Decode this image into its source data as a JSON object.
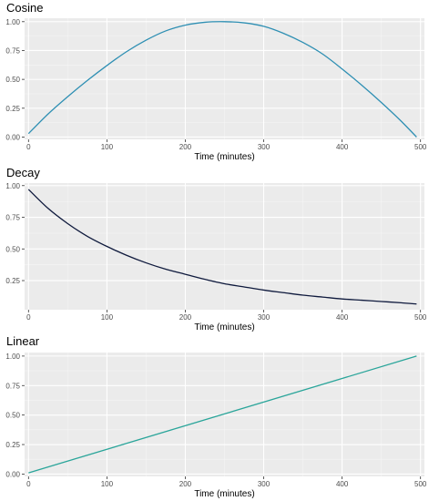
{
  "chart_data": [
    {
      "type": "line",
      "title": "Cosine",
      "xlabel": "Time (minutes)",
      "ylabel": "",
      "xlim": [
        -5,
        505
      ],
      "ylim": [
        -0.02,
        1.03
      ],
      "x_ticks": [
        0,
        100,
        200,
        300,
        400,
        500
      ],
      "y_ticks": [
        0.0,
        0.25,
        0.5,
        0.75,
        1.0
      ],
      "y_tick_labels": [
        "0.00",
        "0.25",
        "0.50",
        "0.75",
        "1.00"
      ],
      "grid": true,
      "color": "#2e8fb3",
      "series": [
        {
          "x": [
            0,
            25,
            50,
            75,
            100,
            125,
            150,
            175,
            200,
            225,
            250,
            275,
            300,
            325,
            350,
            375,
            400,
            425,
            450,
            475,
            495
          ],
          "y": [
            0.03,
            0.2,
            0.35,
            0.49,
            0.62,
            0.74,
            0.84,
            0.92,
            0.97,
            0.995,
            1.0,
            0.99,
            0.96,
            0.9,
            0.82,
            0.72,
            0.59,
            0.45,
            0.3,
            0.14,
            0.0
          ]
        }
      ]
    },
    {
      "type": "line",
      "title": "Decay",
      "xlabel": "Time (minutes)",
      "ylabel": "",
      "xlim": [
        -5,
        505
      ],
      "ylim": [
        0.02,
        1.02
      ],
      "x_ticks": [
        0,
        100,
        200,
        300,
        400,
        500
      ],
      "y_ticks": [
        0.25,
        0.5,
        0.75,
        1.0
      ],
      "y_tick_labels": [
        "0.25",
        "0.50",
        "0.75",
        "1.00"
      ],
      "grid": true,
      "color": "#0f1a3d",
      "series": [
        {
          "x": [
            0,
            25,
            50,
            75,
            100,
            125,
            150,
            175,
            200,
            225,
            250,
            275,
            300,
            325,
            350,
            375,
            400,
            425,
            450,
            475,
            495
          ],
          "y": [
            0.97,
            0.82,
            0.7,
            0.6,
            0.52,
            0.45,
            0.39,
            0.34,
            0.3,
            0.26,
            0.225,
            0.2,
            0.175,
            0.155,
            0.135,
            0.12,
            0.105,
            0.095,
            0.085,
            0.075,
            0.065
          ]
        }
      ]
    },
    {
      "type": "line",
      "title": "Linear",
      "xlabel": "Time (minutes)",
      "ylabel": "",
      "xlim": [
        -5,
        505
      ],
      "ylim": [
        -0.02,
        1.03
      ],
      "x_ticks": [
        0,
        100,
        200,
        300,
        400,
        500
      ],
      "y_ticks": [
        0.0,
        0.25,
        0.5,
        0.75,
        1.0
      ],
      "y_tick_labels": [
        "0.00",
        "0.25",
        "0.50",
        "0.75",
        "1.00"
      ],
      "grid": true,
      "color": "#2aa59a",
      "series": [
        {
          "x": [
            0,
            495
          ],
          "y": [
            0.01,
            1.0
          ]
        }
      ]
    }
  ]
}
